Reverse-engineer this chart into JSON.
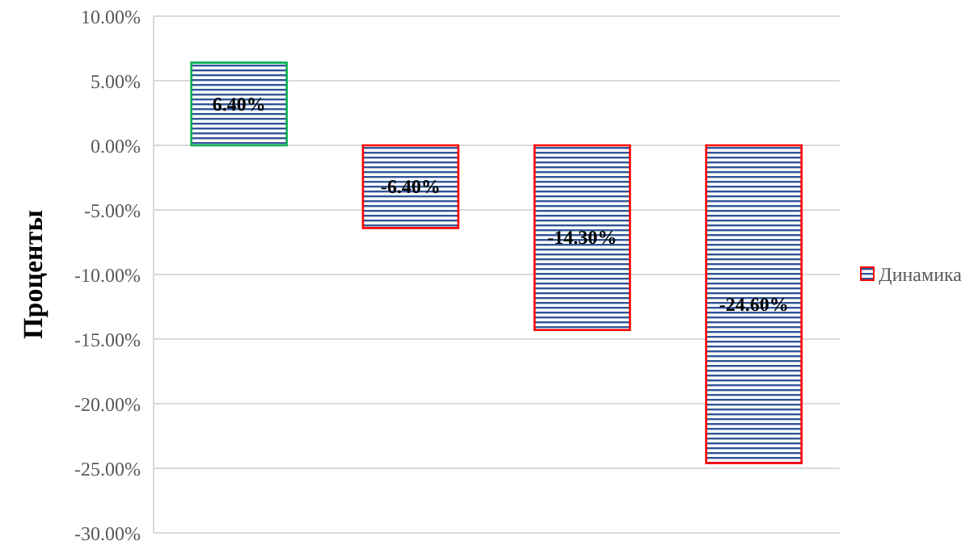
{
  "chart_data": {
    "type": "bar",
    "ylabel": "Проценты",
    "categories": [
      null,
      null,
      null,
      null
    ],
    "series": [
      {
        "name": "Динамика",
        "color": "#2f5597",
        "colors": [
          "#00b050",
          "#ff0000",
          "#ff0000",
          "#ff0000"
        ],
        "values": [
          6.4,
          -6.4,
          -14.3,
          -24.6
        ],
        "value_labels": [
          "6.40%",
          "-6.40%",
          "-14.30%",
          "-24.60%"
        ]
      }
    ],
    "ylim": [
      -30,
      10
    ],
    "yticks": [
      {
        "value": -30,
        "label": "-30.00%"
      },
      {
        "value": -25,
        "label": "-25.00%"
      },
      {
        "value": -20,
        "label": "-20.00%"
      },
      {
        "value": -15,
        "label": "-15.00%"
      },
      {
        "value": -10,
        "label": "-10.00%"
      },
      {
        "value": -5,
        "label": "-5.00%"
      },
      {
        "value": 0,
        "label": "0.00%"
      },
      {
        "value": 5,
        "label": "5.00%"
      },
      {
        "value": 10,
        "label": "10.00%"
      }
    ],
    "grid": "y",
    "legend": "right"
  }
}
